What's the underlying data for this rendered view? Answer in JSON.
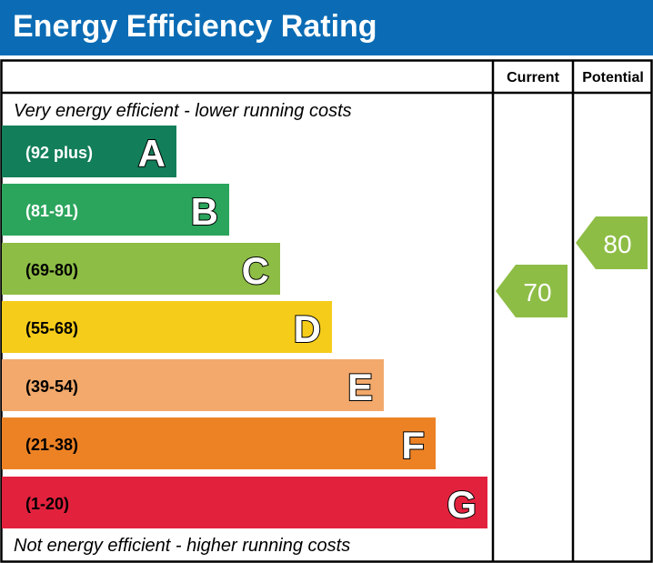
{
  "chart_data": {
    "type": "bar",
    "title": "Energy Efficiency Rating",
    "columns": [
      "Current",
      "Potential"
    ],
    "top_note": "Very energy efficient - lower running costs",
    "bottom_note": "Not energy efficient - higher running costs",
    "bands": [
      {
        "letter": "A",
        "range": "(92 plus)",
        "color": "#127e5a",
        "text_color": "#ffffff"
      },
      {
        "letter": "B",
        "range": "(81-91)",
        "color": "#2ba55c",
        "text_color": "#ffffff"
      },
      {
        "letter": "C",
        "range": "(69-80)",
        "color": "#8dbd45",
        "text_color": "#000000"
      },
      {
        "letter": "D",
        "range": "(55-68)",
        "color": "#f6cc1a",
        "text_color": "#000000"
      },
      {
        "letter": "E",
        "range": "(39-54)",
        "color": "#f2a96b",
        "text_color": "#000000"
      },
      {
        "letter": "F",
        "range": "(21-38)",
        "color": "#ed8225",
        "text_color": "#000000"
      },
      {
        "letter": "G",
        "range": "(1-20)",
        "color": "#e2213d",
        "text_color": "#000000"
      }
    ],
    "current": {
      "value": 70,
      "band": "C",
      "color": "#8dbd45"
    },
    "potential": {
      "value": 80,
      "band": "C",
      "color": "#8dbd45"
    }
  }
}
